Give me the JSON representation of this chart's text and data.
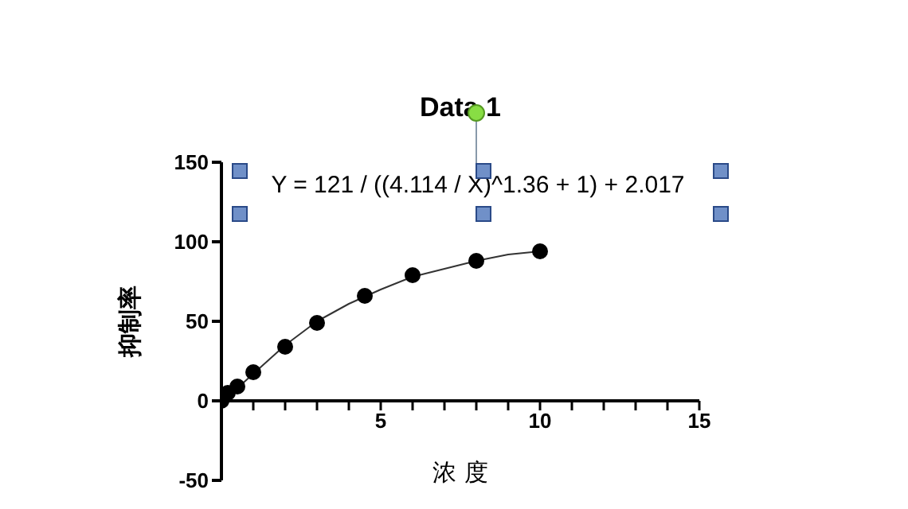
{
  "chart_data": {
    "type": "scatter",
    "title": "Data 1",
    "xlabel": "浓 度",
    "ylabel": "抑制率",
    "annotations": [
      "Y = 121 / ((4.114 / X)^1.36 + 1) + 2.017"
    ],
    "xlim": [
      0,
      15
    ],
    "ylim": [
      -50,
      150
    ],
    "xticks": [
      {
        "value": 0,
        "label": null
      },
      {
        "value": 1,
        "label": null
      },
      {
        "value": 2,
        "label": null
      },
      {
        "value": 3,
        "label": null
      },
      {
        "value": 4,
        "label": null
      },
      5,
      {
        "value": 6,
        "label": null
      },
      {
        "value": 7,
        "label": null
      },
      {
        "value": 8,
        "label": null
      },
      {
        "value": 9,
        "label": null
      },
      10,
      {
        "value": 11,
        "label": null
      },
      {
        "value": 12,
        "label": null
      },
      {
        "value": 13,
        "label": null
      },
      {
        "value": 14,
        "label": null
      },
      15
    ],
    "yticks": [
      -50,
      0,
      50,
      100,
      150
    ],
    "marker": "circle",
    "series": [
      {
        "color": "#000000",
        "x": [
          0,
          0.2,
          0.5,
          1,
          2,
          3,
          4.5,
          6,
          8,
          10
        ],
        "values": [
          0,
          5,
          9,
          18,
          34,
          49,
          66,
          79,
          88,
          94
        ]
      },
      {
        "type": "line",
        "color": "#333333",
        "marker": "none",
        "x": [
          0,
          0.1,
          0.5,
          1,
          2,
          3,
          4,
          5,
          6,
          7,
          8,
          9,
          10
        ],
        "values": [
          0,
          3,
          8,
          17,
          35,
          50,
          61,
          70,
          78,
          83,
          88,
          92,
          94
        ]
      }
    ]
  }
}
